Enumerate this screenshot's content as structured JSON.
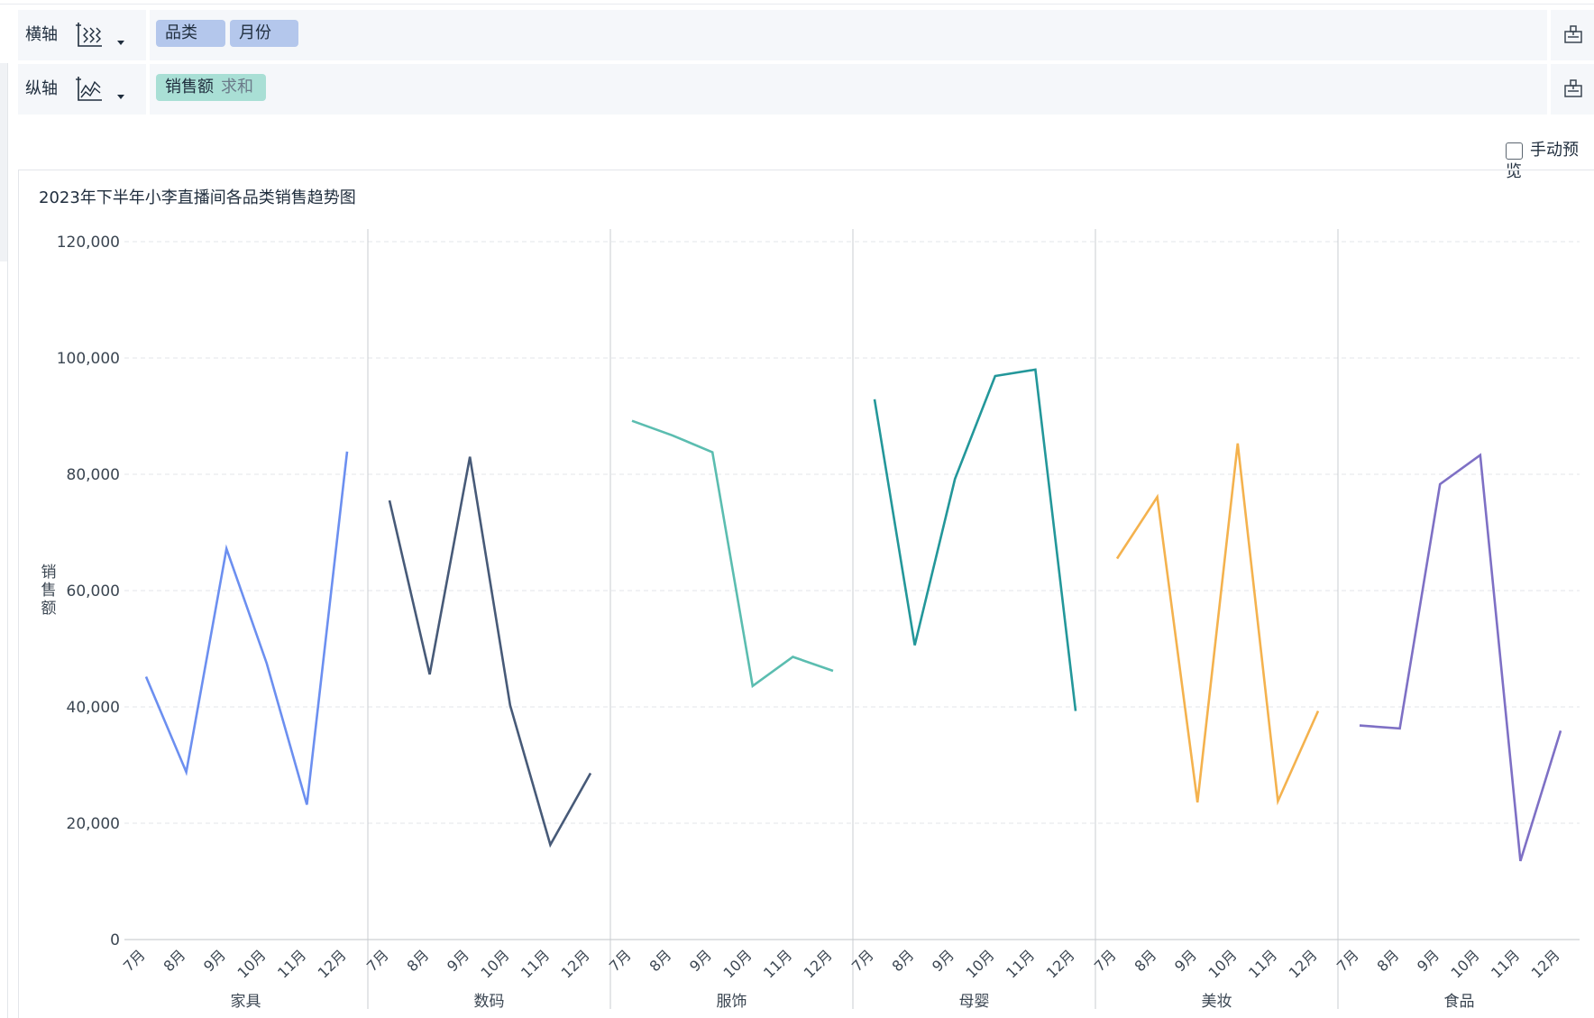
{
  "shelves": {
    "x_axis": {
      "label": "横轴",
      "icon": "dimension-axis-icon",
      "pills": [
        {
          "label": "品类"
        },
        {
          "label": "月份"
        }
      ]
    },
    "y_axis": {
      "label": "纵轴",
      "icon": "measure-axis-icon",
      "pills": [
        {
          "label": "销售额",
          "aggregation": "求和"
        }
      ]
    }
  },
  "manual_preview": {
    "label": "手动预览",
    "checked": false
  },
  "chart_data": {
    "type": "line",
    "title": "2023年下半年小李直播间各品类销售趋势图",
    "xlabel": "",
    "ylabel": "销售额",
    "ylim": [
      0,
      120000
    ],
    "y_ticks": [
      "0",
      "20,000",
      "40,000",
      "60,000",
      "80,000",
      "100,000",
      "120,000"
    ],
    "y_tick_values": [
      0,
      20000,
      40000,
      60000,
      80000,
      100000,
      120000
    ],
    "months": [
      "7月",
      "8月",
      "9月",
      "10月",
      "11月",
      "12月"
    ],
    "grid": true,
    "panels": [
      {
        "category": "家具",
        "color": "#6c8ff0",
        "values": [
          45200,
          28800,
          67200,
          47500,
          23200,
          83900
        ]
      },
      {
        "category": "数码",
        "color": "#475a78",
        "values": [
          75500,
          45600,
          83000,
          40300,
          16300,
          28600
        ]
      },
      {
        "category": "服饰",
        "color": "#5bbdb0",
        "values": [
          89200,
          86700,
          83800,
          43600,
          48600,
          46200
        ]
      },
      {
        "category": "母婴",
        "color": "#23979a",
        "values": [
          92900,
          50600,
          79200,
          96900,
          98000,
          39300
        ]
      },
      {
        "category": "美妆",
        "color": "#f4b24e",
        "values": [
          65500,
          76100,
          23600,
          85300,
          23800,
          39300
        ]
      },
      {
        "category": "食品",
        "color": "#7e70c5",
        "values": [
          36800,
          36300,
          78300,
          83300,
          13500,
          35900
        ]
      }
    ]
  }
}
